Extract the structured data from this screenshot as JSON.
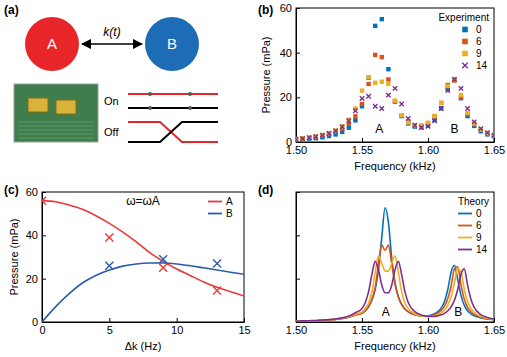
{
  "diagram": {
    "label": "(a)",
    "nodes": [
      {
        "label": "A",
        "color": "#e8262a"
      },
      {
        "label": "B",
        "color": "#1c6db5"
      }
    ],
    "coupling": "k(t)",
    "states": [
      "On",
      "Off"
    ]
  },
  "chart_data": [
    {
      "type": "scatter",
      "title": "(b)",
      "legend_title": "Experiment",
      "x_label": "Frequency (kHz)",
      "y_label": "Pressure (mPa)",
      "xlim": [
        1.5,
        1.65
      ],
      "ylim": [
        0,
        60
      ],
      "xticks": [
        {
          "value": 1.5,
          "label": "1.50"
        },
        {
          "value": 1.55,
          "label": "1.55"
        },
        {
          "value": 1.6,
          "label": "1.60"
        },
        {
          "value": 1.65,
          "label": "1.65"
        }
      ],
      "yticks": [
        0,
        20,
        40,
        60
      ],
      "legend": "upper right",
      "annotations": [
        {
          "text": "A",
          "x": 1.563,
          "y": 4
        },
        {
          "text": "B",
          "x": 1.62,
          "y": 4
        }
      ],
      "x": [
        1.5,
        1.505,
        1.51,
        1.515,
        1.52,
        1.525,
        1.53,
        1.535,
        1.54,
        1.545,
        1.55,
        1.555,
        1.56,
        1.565,
        1.57,
        1.575,
        1.58,
        1.585,
        1.59,
        1.595,
        1.6,
        1.605,
        1.61,
        1.615,
        1.62,
        1.625,
        1.63,
        1.635,
        1.64,
        1.645,
        1.65
      ],
      "series": [
        {
          "name": "0",
          "color": "#0072bd",
          "marker": "square",
          "values": [
            1.0,
            1.3,
            1.5,
            1.7,
            2.1,
            2.7,
            3.4,
            4.5,
            6.4,
            9.7,
            16.0,
            28.8,
            52,
            55,
            32.6,
            18.3,
            11.6,
            8.3,
            6.9,
            6.6,
            7.4,
            9.9,
            15.1,
            23.8,
            28.1,
            19.6,
            11.6,
            7.2,
            4.8,
            3.4,
            2.6
          ]
        },
        {
          "name": "6",
          "color": "#d95319",
          "marker": "square",
          "values": [
            1.3,
            1.6,
            1.9,
            2.3,
            2.9,
            3.6,
            4.6,
            6.0,
            8.2,
            11.5,
            17,
            26,
            39,
            38,
            28,
            18,
            12,
            9,
            7.5,
            7.3,
            8.5,
            11.5,
            17.5,
            25.5,
            27.5,
            20,
            12.5,
            8,
            5.5,
            4,
            3
          ]
        },
        {
          "name": "9",
          "color": "#edb120",
          "marker": "square",
          "values": [
            1.3,
            1.6,
            2,
            2.5,
            3.1,
            4,
            5.2,
            7,
            10,
            15,
            23,
            29,
            26.5,
            27,
            26,
            18.5,
            12,
            8.8,
            7.5,
            7.4,
            8.5,
            11.5,
            17.5,
            25,
            28,
            21,
            13,
            8.3,
            5.6,
            4,
            3
          ]
        },
        {
          "name": "14",
          "color": "#7e2f8e",
          "marker": "x",
          "values": [
            1.2,
            1.5,
            1.9,
            2.4,
            3,
            3.8,
            5,
            6.8,
            9.5,
            14,
            19.5,
            20.5,
            16,
            15,
            21,
            24,
            17,
            10.5,
            7.5,
            6.5,
            7,
            9.5,
            15,
            23,
            28,
            24,
            15,
            9,
            6,
            4.2,
            3
          ]
        }
      ]
    },
    {
      "type": "line",
      "title": "(c)",
      "x_label": "Δk (Hz)",
      "y_label": "Pressure (mPa)",
      "xlim": [
        0,
        15
      ],
      "ylim": [
        0,
        60
      ],
      "xticks": [
        0,
        5,
        10,
        15
      ],
      "yticks": [
        0,
        20,
        40,
        60
      ],
      "legend": "upper right",
      "annotations": [
        {
          "text": "ω=ωA",
          "x": 7.5,
          "y": 54
        }
      ],
      "series": [
        {
          "name": "A",
          "color": "#e8393a",
          "type": "line",
          "x": [
            0,
            1,
            2,
            3,
            4,
            5,
            6,
            7,
            8,
            9,
            10,
            11,
            12,
            13,
            14,
            15
          ],
          "values": [
            56,
            55.5,
            54,
            52,
            49,
            45.5,
            41.5,
            37,
            32,
            28,
            24.5,
            21.5,
            18.5,
            16,
            14,
            12
          ]
        },
        {
          "name": "B",
          "color": "#2a5caa",
          "type": "line",
          "x": [
            0,
            1,
            2,
            3,
            4,
            5,
            6,
            7,
            8,
            9,
            10,
            11,
            12,
            13,
            14,
            15
          ],
          "values": [
            0,
            7,
            13,
            18,
            21.5,
            24,
            25.8,
            26.8,
            27.2,
            27.2,
            26.8,
            26,
            25,
            24,
            23,
            22
          ]
        },
        {
          "color": "#e8393a",
          "type": "scatter",
          "marker": "x",
          "x": [
            0,
            5,
            9,
            13
          ],
          "values": [
            56,
            39,
            25,
            14.5
          ]
        },
        {
          "color": "#2a5caa",
          "type": "scatter",
          "marker": "x",
          "x": [
            5,
            9,
            13
          ],
          "values": [
            26,
            29,
            27
          ]
        }
      ]
    },
    {
      "type": "line",
      "title": "(d)",
      "legend_title": "Theory",
      "x_label": "Frequency (kHz)",
      "xlim": [
        1.5,
        1.65
      ],
      "ylim": [
        0,
        60
      ],
      "xticks": [
        {
          "value": 1.5,
          "label": "1.50"
        },
        {
          "value": 1.55,
          "label": "1.55"
        },
        {
          "value": 1.6,
          "label": "1.60"
        },
        {
          "value": 1.65,
          "label": "1.65"
        }
      ],
      "yticks": [
        0,
        20,
        40,
        60
      ],
      "tick_labels": "x",
      "legend": "upper right",
      "annotations": [
        {
          "text": "A",
          "x": 1.568,
          "y": 3
        },
        {
          "text": "B",
          "x": 1.623,
          "y": 3
        }
      ],
      "x": [
        1.5,
        1.505,
        1.51,
        1.515,
        1.52,
        1.525,
        1.53,
        1.535,
        1.54,
        1.545,
        1.55,
        1.5525,
        1.555,
        1.5575,
        1.56,
        1.5625,
        1.565,
        1.5675,
        1.57,
        1.5725,
        1.575,
        1.5775,
        1.58,
        1.5825,
        1.585,
        1.59,
        1.595,
        1.6,
        1.605,
        1.61,
        1.6125,
        1.615,
        1.6175,
        1.62,
        1.6225,
        1.625,
        1.6275,
        1.63,
        1.6325,
        1.635,
        1.64,
        1.645,
        1.65
      ],
      "series": [
        {
          "name": "0",
          "color": "#0072bd",
          "values": [
            0.4,
            0.5,
            0.5,
            0.6,
            0.8,
            1.0,
            1.2,
            1.6,
            2.2,
            3.3,
            4.0,
            5.2,
            7.0,
            10.0,
            15.1,
            24.2,
            39.2,
            52.7,
            46.0,
            29.6,
            18.2,
            11.8,
            8.2,
            6.0,
            4.7,
            3.3,
            2.8,
            2.9,
            3.8,
            6.4,
            9.5,
            15.0,
            23.0,
            26.2,
            19.6,
            12.3,
            7.7,
            5.2,
            3.8,
            2.9,
            1.9,
            1.4,
            1.1
          ]
        },
        {
          "name": "6",
          "color": "#d95319",
          "values": [
            0.4,
            0.5,
            0.5,
            0.6,
            0.8,
            1.0,
            1.2,
            1.6,
            2.2,
            3.2,
            4.0,
            5.2,
            7.2,
            10.5,
            16,
            27,
            35.5,
            33,
            35.5,
            27,
            17.5,
            11.5,
            8,
            6,
            4.8,
            3.3,
            2.7,
            2.7,
            3.4,
            5.3,
            7.3,
            10.8,
            16.5,
            24.5,
            25.5,
            17,
            10.5,
            6.8,
            4.7,
            3.5,
            2.2,
            1.5,
            1.1
          ]
        },
        {
          "name": "9",
          "color": "#edb120",
          "values": [
            0.4,
            0.5,
            0.5,
            0.6,
            0.8,
            1.0,
            1.3,
            1.7,
            2.4,
            3.6,
            4.6,
            6.2,
            8.8,
            14,
            23,
            30.5,
            27,
            23.5,
            23.5,
            27,
            30.5,
            23,
            14,
            8.8,
            6.2,
            3.8,
            2.8,
            2.6,
            3,
            4.2,
            5.5,
            7.8,
            11.5,
            18,
            24.5,
            23,
            15,
            9.5,
            6.3,
            4.5,
            2.6,
            1.7,
            1.2
          ]
        },
        {
          "name": "14",
          "color": "#7e2f8e",
          "values": [
            0.4,
            0.5,
            0.6,
            0.7,
            0.9,
            1.1,
            1.4,
            1.9,
            2.8,
            4.3,
            6.2,
            9,
            14,
            22,
            28,
            24,
            17,
            13.5,
            13.5,
            17,
            24,
            28,
            22,
            14,
            9,
            4.8,
            3.2,
            2.6,
            2.6,
            3.3,
            4,
            5.2,
            7,
            10,
            15,
            22,
            24.5,
            17,
            10.5,
            6.8,
            3.4,
            2.1,
            1.4
          ]
        }
      ]
    }
  ]
}
